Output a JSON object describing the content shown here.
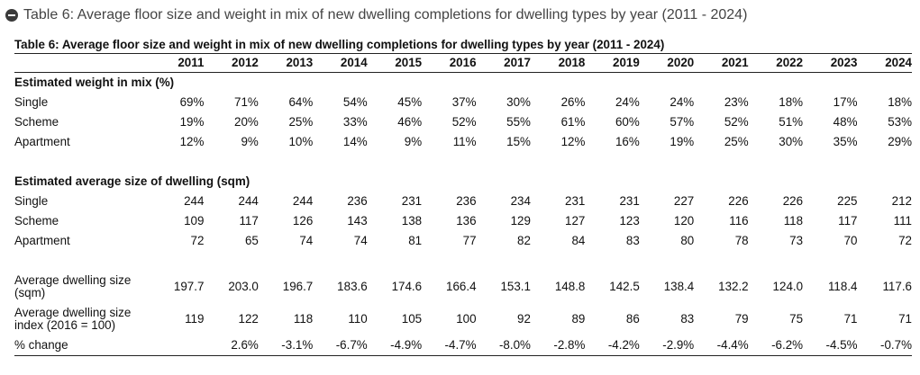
{
  "section": {
    "title": "Table 6: Average floor size and weight in mix of new dwelling completions for dwelling types by year (2011 - 2024)"
  },
  "table": {
    "caption": "Table 6: Average floor size and weight in mix of new dwelling completions for dwelling types by year (2011 - 2024)",
    "years": [
      "2011",
      "2012",
      "2013",
      "2014",
      "2015",
      "2016",
      "2017",
      "2018",
      "2019",
      "2020",
      "2021",
      "2022",
      "2023",
      "2024"
    ],
    "weight_section": {
      "title": "Estimated weight in mix (%)",
      "rows": [
        {
          "label": "Single",
          "values": [
            "69%",
            "71%",
            "64%",
            "54%",
            "45%",
            "37%",
            "30%",
            "26%",
            "24%",
            "24%",
            "23%",
            "18%",
            "17%",
            "18%"
          ]
        },
        {
          "label": "Scheme",
          "values": [
            "19%",
            "20%",
            "25%",
            "33%",
            "46%",
            "52%",
            "55%",
            "61%",
            "60%",
            "57%",
            "52%",
            "51%",
            "48%",
            "53%"
          ]
        },
        {
          "label": "Apartment",
          "values": [
            "12%",
            "9%",
            "10%",
            "14%",
            "9%",
            "11%",
            "15%",
            "12%",
            "16%",
            "19%",
            "25%",
            "30%",
            "35%",
            "29%"
          ]
        }
      ]
    },
    "size_section": {
      "title": "Estimated average size of dwelling (sqm)",
      "rows": [
        {
          "label": "Single",
          "values": [
            "244",
            "244",
            "244",
            "236",
            "231",
            "236",
            "234",
            "231",
            "231",
            "227",
            "226",
            "226",
            "225",
            "212"
          ]
        },
        {
          "label": "Scheme",
          "values": [
            "109",
            "117",
            "126",
            "143",
            "138",
            "136",
            "129",
            "127",
            "123",
            "120",
            "116",
            "118",
            "117",
            "111"
          ]
        },
        {
          "label": "Apartment",
          "values": [
            "72",
            "65",
            "74",
            "74",
            "81",
            "77",
            "82",
            "84",
            "83",
            "80",
            "78",
            "73",
            "70",
            "72"
          ]
        }
      ]
    },
    "summary_rows": [
      {
        "label": "Average dwelling size (sqm)",
        "values": [
          "197.7",
          "203.0",
          "196.7",
          "183.6",
          "174.6",
          "166.4",
          "153.1",
          "148.8",
          "142.5",
          "138.4",
          "132.2",
          "124.0",
          "118.4",
          "117.6"
        ]
      },
      {
        "label": "Average dwelling size index (2016 = 100)",
        "values": [
          "119",
          "122",
          "118",
          "110",
          "105",
          "100",
          "92",
          "89",
          "86",
          "83",
          "79",
          "75",
          "71",
          "71"
        ]
      },
      {
        "label": "% change",
        "values": [
          "",
          "2.6%",
          "-3.1%",
          "-6.7%",
          "-4.9%",
          "-4.7%",
          "-8.0%",
          "-2.8%",
          "-4.2%",
          "-2.9%",
          "-4.4%",
          "-6.2%",
          "-4.5%",
          "-0.7%"
        ]
      }
    ]
  }
}
